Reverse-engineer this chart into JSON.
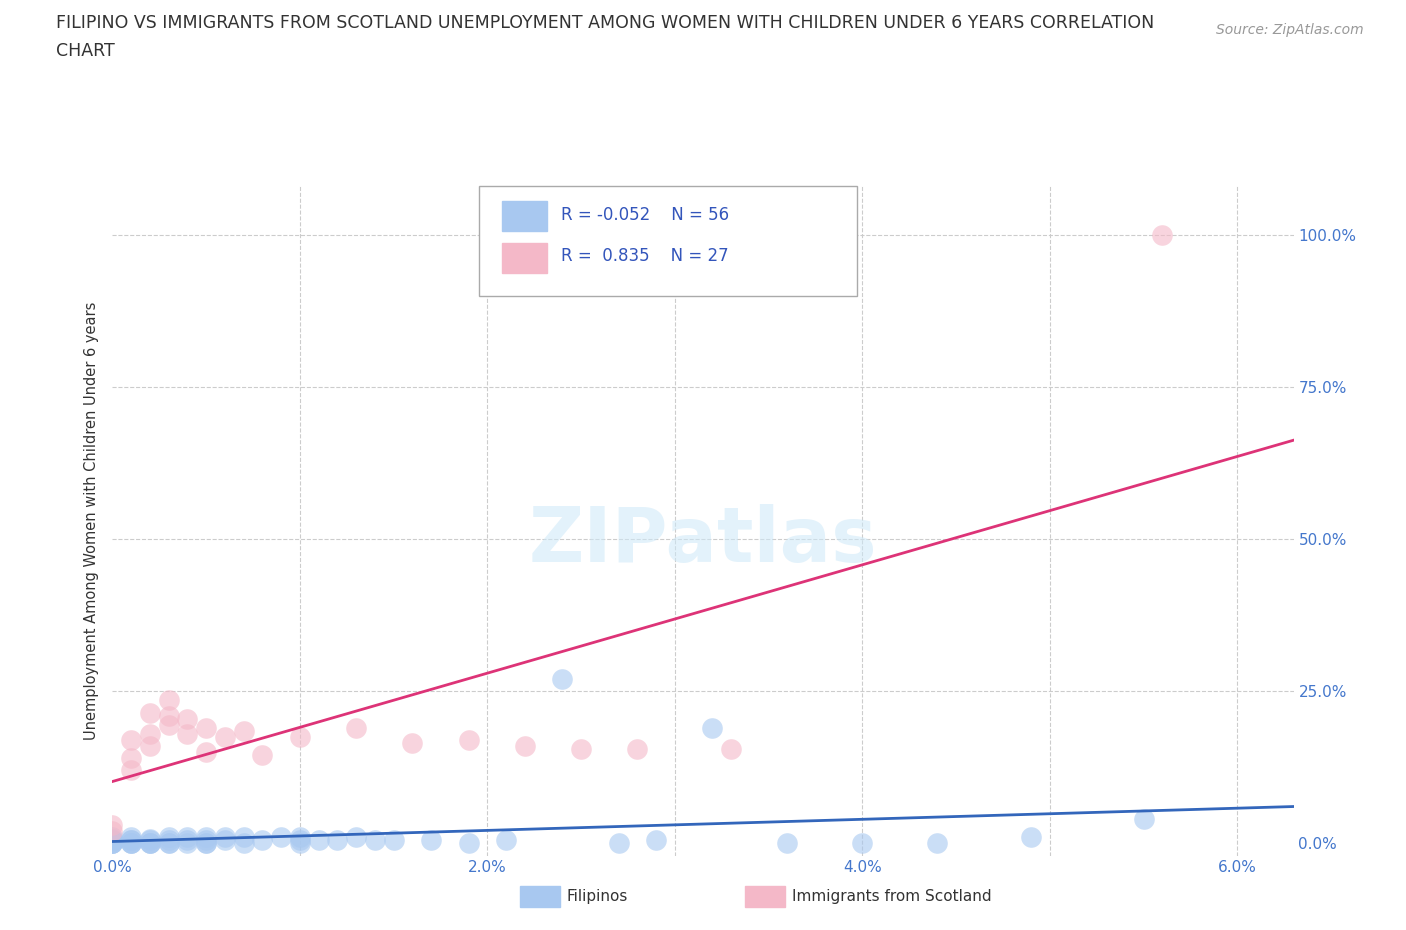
{
  "title_line1": "FILIPINO VS IMMIGRANTS FROM SCOTLAND UNEMPLOYMENT AMONG WOMEN WITH CHILDREN UNDER 6 YEARS CORRELATION",
  "title_line2": "CHART",
  "source": "Source: ZipAtlas.com",
  "ylabel": "Unemployment Among Women with Children Under 6 years",
  "xlim": [
    0.0,
    0.063
  ],
  "ylim": [
    -0.02,
    1.08
  ],
  "filipino_color": "#a8c8f0",
  "scotland_color": "#f4b8c8",
  "filipino_R": -0.052,
  "filipino_N": 56,
  "scotland_R": 0.835,
  "scotland_N": 27,
  "filipino_line_color": "#3366bb",
  "scotland_line_color": "#dd3377",
  "legend_R_color": "#3355bb",
  "fil_x": [
    0.0,
    0.0,
    0.0,
    0.0,
    0.0,
    0.0,
    0.0,
    0.0,
    0.001,
    0.001,
    0.001,
    0.001,
    0.001,
    0.001,
    0.002,
    0.002,
    0.002,
    0.002,
    0.002,
    0.003,
    0.003,
    0.003,
    0.003,
    0.004,
    0.004,
    0.004,
    0.005,
    0.005,
    0.005,
    0.005,
    0.006,
    0.006,
    0.007,
    0.007,
    0.008,
    0.009,
    0.01,
    0.01,
    0.01,
    0.011,
    0.012,
    0.013,
    0.014,
    0.015,
    0.017,
    0.019,
    0.021,
    0.024,
    0.027,
    0.029,
    0.032,
    0.036,
    0.04,
    0.044,
    0.049,
    0.055
  ],
  "fil_y": [
    0.0,
    0.0,
    0.0,
    0.0,
    0.005,
    0.005,
    0.008,
    0.01,
    0.0,
    0.0,
    0.0,
    0.005,
    0.005,
    0.01,
    0.0,
    0.0,
    0.0,
    0.005,
    0.008,
    0.0,
    0.0,
    0.005,
    0.01,
    0.0,
    0.005,
    0.01,
    0.0,
    0.0,
    0.005,
    0.01,
    0.005,
    0.01,
    0.0,
    0.01,
    0.005,
    0.01,
    0.0,
    0.005,
    0.01,
    0.005,
    0.005,
    0.01,
    0.005,
    0.005,
    0.005,
    0.0,
    0.005,
    0.27,
    0.0,
    0.005,
    0.19,
    0.0,
    0.0,
    0.0,
    0.01,
    0.04
  ],
  "scot_x": [
    0.0,
    0.0,
    0.001,
    0.001,
    0.001,
    0.002,
    0.002,
    0.002,
    0.003,
    0.003,
    0.003,
    0.004,
    0.004,
    0.005,
    0.005,
    0.006,
    0.007,
    0.008,
    0.01,
    0.013,
    0.016,
    0.019,
    0.022,
    0.025,
    0.028,
    0.033,
    0.056
  ],
  "scot_y": [
    0.02,
    0.03,
    0.12,
    0.14,
    0.17,
    0.16,
    0.18,
    0.215,
    0.195,
    0.21,
    0.235,
    0.18,
    0.205,
    0.15,
    0.19,
    0.175,
    0.185,
    0.145,
    0.175,
    0.19,
    0.165,
    0.17,
    0.16,
    0.155,
    0.155,
    0.155,
    1.0
  ]
}
